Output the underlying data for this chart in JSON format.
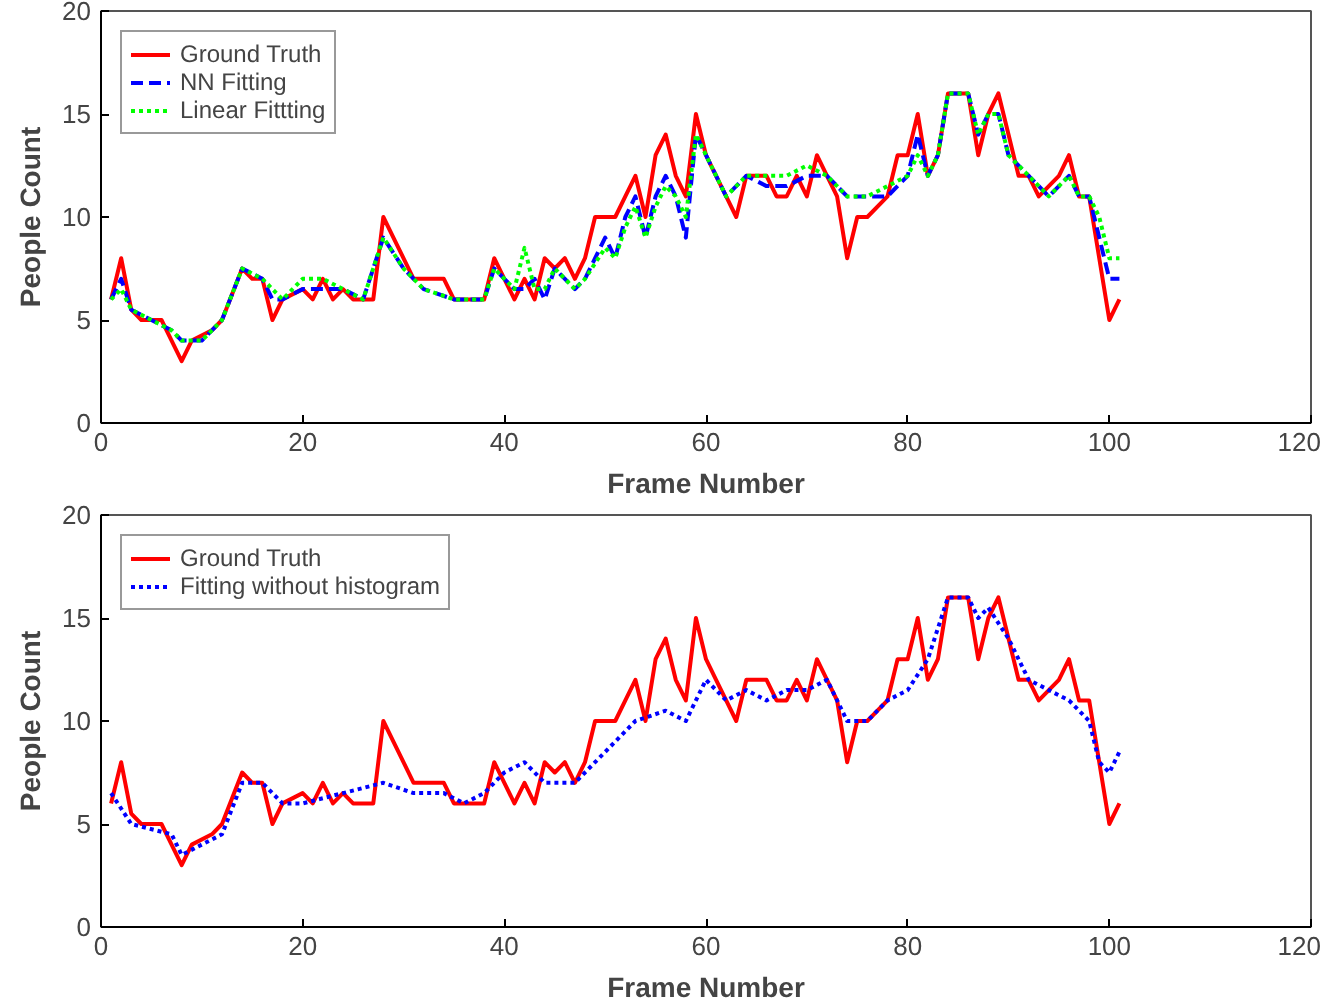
{
  "chart_data": [
    {
      "type": "line",
      "xlabel": "Frame Number",
      "ylabel": "People Count",
      "xlim": [
        0,
        120
      ],
      "ylim": [
        0,
        20
      ],
      "xticks": [
        0,
        20,
        40,
        60,
        80,
        100,
        120
      ],
      "yticks": [
        0,
        5,
        10,
        15,
        20
      ],
      "grid": false,
      "legend": "top left",
      "series": [
        {
          "name": "Ground Truth",
          "color": "#ff0000",
          "line_style": "solid",
          "x": [
            1,
            2,
            3,
            4,
            6,
            7,
            8,
            9,
            11,
            12,
            14,
            15,
            16,
            17,
            18,
            20,
            21,
            22,
            23,
            24,
            25,
            27,
            28,
            29,
            31,
            34,
            35,
            38,
            39,
            40,
            41,
            42,
            43,
            44,
            45,
            46,
            47,
            48,
            49,
            51,
            52,
            53,
            54,
            55,
            56,
            57,
            58,
            59,
            60,
            61,
            62,
            63,
            64,
            66,
            67,
            68,
            69,
            70,
            71,
            72,
            73,
            74,
            75,
            76,
            78,
            79,
            80,
            81,
            82,
            83,
            84,
            86,
            87,
            88,
            89,
            90,
            91,
            92,
            93,
            95,
            96,
            97,
            98,
            99,
            100,
            101
          ],
          "values": [
            6,
            8,
            5.5,
            5,
            5,
            4,
            3,
            4,
            4.5,
            5,
            7.5,
            7,
            7,
            5,
            6,
            6.5,
            6,
            7,
            6,
            6.5,
            6,
            6,
            10,
            9,
            7,
            7,
            6,
            6,
            8,
            7,
            6,
            7,
            6,
            8,
            7.5,
            8,
            7,
            8,
            10,
            10,
            11,
            12,
            10,
            13,
            14,
            12,
            11,
            15,
            13,
            12,
            11,
            10,
            12,
            12,
            11,
            11,
            12,
            11,
            13,
            12,
            11,
            8,
            10,
            10,
            11,
            13,
            13,
            15,
            12,
            13,
            16,
            16,
            13,
            15,
            16,
            14,
            12,
            12,
            11,
            12,
            13,
            11,
            11,
            8,
            5,
            6
          ]
        },
        {
          "name": "NN Fitting",
          "color": "#0000ff",
          "line_style": "dashed",
          "x": [
            1,
            2,
            3,
            5,
            7,
            8,
            10,
            12,
            14,
            16,
            17,
            18,
            20,
            22,
            24,
            26,
            28,
            30,
            32,
            35,
            38,
            39,
            40,
            41,
            42,
            43,
            44,
            45,
            47,
            48,
            50,
            51,
            52,
            53,
            54,
            55,
            56,
            57,
            58,
            59,
            60,
            62,
            64,
            66,
            68,
            70,
            72,
            74,
            76,
            78,
            80,
            81,
            82,
            83,
            84,
            86,
            87,
            88,
            89,
            90,
            92,
            94,
            96,
            97,
            98,
            99,
            100,
            101
          ],
          "values": [
            6,
            7,
            5.5,
            5,
            4.5,
            4,
            4,
            5,
            7.5,
            7,
            6,
            6,
            6.5,
            6.5,
            6.5,
            6,
            9,
            7.5,
            6.5,
            6,
            6,
            7.5,
            7,
            6.5,
            6.5,
            7,
            6,
            7.5,
            6.5,
            7,
            9,
            8,
            10,
            11,
            9,
            11,
            12,
            11,
            9,
            14,
            13,
            11,
            12,
            11.5,
            11.5,
            12,
            12,
            11,
            11,
            11,
            12,
            14,
            12,
            13,
            16,
            16,
            14,
            15,
            15,
            13,
            12,
            11,
            12,
            11,
            11,
            9,
            7,
            7
          ]
        },
        {
          "name": "Linear Fittting",
          "color": "#00ff00",
          "line_style": "dotted",
          "x": [
            1,
            2,
            3,
            5,
            7,
            8,
            10,
            12,
            14,
            16,
            17,
            18,
            20,
            22,
            24,
            26,
            28,
            30,
            32,
            35,
            38,
            39,
            40,
            41,
            42,
            43,
            44,
            45,
            47,
            48,
            50,
            51,
            52,
            53,
            54,
            55,
            56,
            57,
            58,
            59,
            60,
            62,
            64,
            66,
            68,
            70,
            72,
            74,
            76,
            78,
            80,
            81,
            82,
            83,
            84,
            86,
            87,
            88,
            89,
            90,
            92,
            94,
            96,
            97,
            98,
            99,
            100,
            101
          ],
          "values": [
            6,
            6.5,
            5.5,
            5,
            4.5,
            4,
            4,
            5,
            7.5,
            7,
            6.5,
            6,
            7,
            7,
            6.5,
            6,
            9,
            7.5,
            6.5,
            6,
            6,
            7.5,
            7,
            6.5,
            8.5,
            6.5,
            6.5,
            7.5,
            6.5,
            7,
            8.5,
            8,
            9.5,
            10.5,
            9,
            10.5,
            11.5,
            11,
            10,
            14,
            13,
            11,
            12,
            12,
            12,
            12.5,
            12,
            11,
            11,
            11.5,
            12,
            13,
            12,
            13,
            16,
            16,
            14,
            15,
            15,
            13,
            12,
            11,
            12,
            11,
            11,
            10,
            8,
            8
          ]
        }
      ]
    },
    {
      "type": "line",
      "xlabel": "Frame Number",
      "ylabel": "People Count",
      "xlim": [
        0,
        120
      ],
      "ylim": [
        0,
        20
      ],
      "xticks": [
        0,
        20,
        40,
        60,
        80,
        100,
        120
      ],
      "yticks": [
        0,
        5,
        10,
        15,
        20
      ],
      "grid": false,
      "legend": "top left",
      "series": [
        {
          "name": "Ground Truth",
          "color": "#ff0000",
          "line_style": "solid",
          "x": [
            1,
            2,
            3,
            4,
            6,
            7,
            8,
            9,
            11,
            12,
            14,
            15,
            16,
            17,
            18,
            20,
            21,
            22,
            23,
            24,
            25,
            27,
            28,
            29,
            31,
            34,
            35,
            38,
            39,
            40,
            41,
            42,
            43,
            44,
            45,
            46,
            47,
            48,
            49,
            51,
            52,
            53,
            54,
            55,
            56,
            57,
            58,
            59,
            60,
            61,
            62,
            63,
            64,
            66,
            67,
            68,
            69,
            70,
            71,
            72,
            73,
            74,
            75,
            76,
            78,
            79,
            80,
            81,
            82,
            83,
            84,
            86,
            87,
            88,
            89,
            90,
            91,
            92,
            93,
            95,
            96,
            97,
            98,
            99,
            100,
            101
          ],
          "values": [
            6,
            8,
            5.5,
            5,
            5,
            4,
            3,
            4,
            4.5,
            5,
            7.5,
            7,
            7,
            5,
            6,
            6.5,
            6,
            7,
            6,
            6.5,
            6,
            6,
            10,
            9,
            7,
            7,
            6,
            6,
            8,
            7,
            6,
            7,
            6,
            8,
            7.5,
            8,
            7,
            8,
            10,
            10,
            11,
            12,
            10,
            13,
            14,
            12,
            11,
            15,
            13,
            12,
            11,
            10,
            12,
            12,
            11,
            11,
            12,
            11,
            13,
            12,
            11,
            8,
            10,
            10,
            11,
            13,
            13,
            15,
            12,
            13,
            16,
            16,
            13,
            15,
            16,
            14,
            12,
            12,
            11,
            12,
            13,
            11,
            11,
            8,
            5,
            6
          ]
        },
        {
          "name": "Fitting without histogram",
          "color": "#0000ff",
          "line_style": "dotted",
          "x": [
            1,
            3,
            7,
            8,
            10,
            12,
            14,
            16,
            18,
            20,
            24,
            28,
            31,
            34,
            36,
            38,
            40,
            42,
            44,
            47,
            49,
            51,
            53,
            56,
            58,
            60,
            62,
            64,
            66,
            68,
            70,
            72,
            74,
            76,
            78,
            80,
            82,
            84,
            86,
            87,
            88,
            90,
            92,
            94,
            96,
            98,
            99,
            100,
            101
          ],
          "values": [
            6.5,
            5,
            4.5,
            3.5,
            4,
            4.5,
            7,
            7,
            6,
            6,
            6.5,
            7,
            6.5,
            6.5,
            6,
            6.5,
            7.5,
            8,
            7,
            7,
            8,
            9,
            10,
            10.5,
            10,
            12,
            11,
            11.5,
            11,
            11.5,
            11.5,
            12,
            10,
            10,
            11,
            11.5,
            13,
            16,
            16,
            15,
            15.5,
            14,
            12,
            11.5,
            11,
            10,
            8,
            7.5,
            8.5
          ]
        }
      ]
    }
  ]
}
